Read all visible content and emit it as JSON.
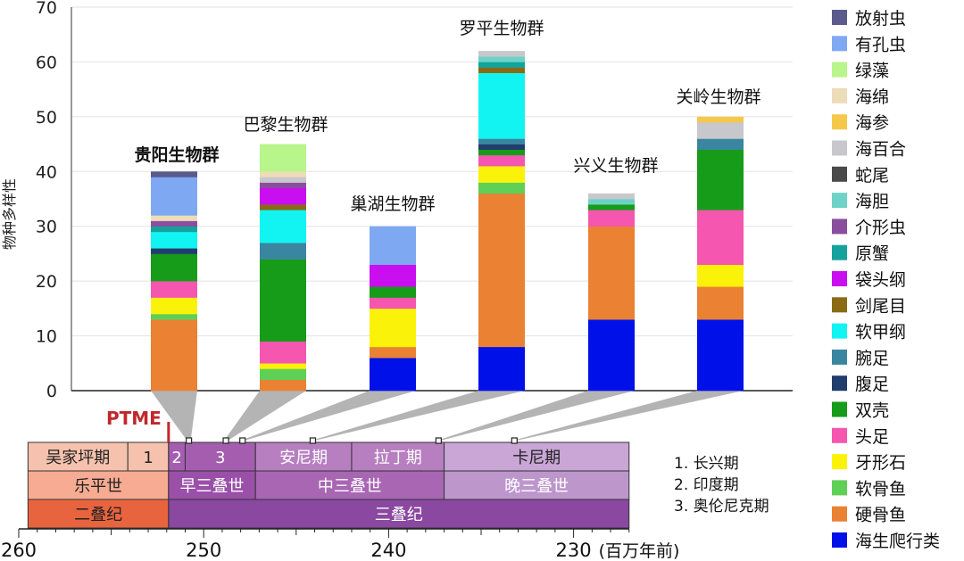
{
  "chart_data": {
    "type": "bar",
    "stacked": true,
    "ylabel": "物种多样性",
    "ylim": [
      0,
      70
    ],
    "yticks": [
      0,
      10,
      20,
      30,
      40,
      50,
      60,
      70
    ],
    "grid": true,
    "legend_placement": "right",
    "categories": [
      "贵阳生物群",
      "巴黎生物群",
      "巢湖生物群",
      "罗平生物群",
      "兴义生物群",
      "关岭生物群"
    ],
    "category_ages_ma": [
      250.8,
      248.8,
      247.9,
      244.1,
      237.3,
      233.2
    ],
    "series": [
      {
        "name": "海生爬行类",
        "color": "#0010e8",
        "values": [
          0,
          0,
          6,
          8,
          13,
          13
        ]
      },
      {
        "name": "硬骨鱼",
        "color": "#ea8133",
        "values": [
          13,
          2,
          2,
          28,
          17,
          6
        ]
      },
      {
        "name": "软骨鱼",
        "color": "#5fcf55",
        "values": [
          1,
          2,
          0,
          2,
          0,
          0
        ]
      },
      {
        "name": "牙形石",
        "color": "#fbf20a",
        "values": [
          3,
          1,
          7,
          3,
          0,
          4
        ]
      },
      {
        "name": "头足",
        "color": "#f556b0",
        "values": [
          3,
          4,
          2,
          2,
          3,
          10
        ]
      },
      {
        "name": "双壳",
        "color": "#169c18",
        "values": [
          5,
          15,
          2,
          1,
          1,
          11
        ]
      },
      {
        "name": "腹足",
        "color": "#213d6e",
        "values": [
          1,
          0,
          0,
          1,
          0,
          0
        ]
      },
      {
        "name": "腕足",
        "color": "#3a85a0",
        "values": [
          0,
          3,
          0,
          1,
          0,
          2
        ]
      },
      {
        "name": "软甲纲",
        "color": "#12f4f2",
        "values": [
          3,
          6,
          0,
          12,
          0,
          0
        ]
      },
      {
        "name": "剑尾目",
        "color": "#8a6a15",
        "values": [
          0,
          1,
          0,
          1,
          0,
          0
        ]
      },
      {
        "name": "袋头纲",
        "color": "#c90ef0",
        "values": [
          0,
          3,
          4,
          0,
          0,
          0
        ]
      },
      {
        "name": "原蟹",
        "color": "#14a39c",
        "values": [
          1,
          0,
          0,
          1,
          0,
          0
        ]
      },
      {
        "name": "介形虫",
        "color": "#8a4e9e",
        "values": [
          1,
          1,
          0,
          0,
          0,
          0
        ]
      },
      {
        "name": "海胆",
        "color": "#6dd3c8",
        "values": [
          0,
          0,
          0,
          1,
          1,
          0
        ]
      },
      {
        "name": "蛇尾",
        "color": "#4a4a4a",
        "values": [
          0,
          0,
          0,
          0,
          0,
          0
        ]
      },
      {
        "name": "海百合",
        "color": "#c8c8cc",
        "values": [
          0,
          1,
          0,
          1,
          1,
          3
        ]
      },
      {
        "name": "海参",
        "color": "#f6c84a",
        "values": [
          0,
          0,
          0,
          0,
          0,
          1
        ]
      },
      {
        "name": "海绵",
        "color": "#ecdcb8",
        "values": [
          1,
          1,
          0,
          0,
          0,
          0
        ]
      },
      {
        "name": "绿藻",
        "color": "#b8f58a",
        "values": [
          0,
          5,
          0,
          0,
          0,
          0
        ]
      },
      {
        "name": "有孔虫",
        "color": "#7fa8f2",
        "values": [
          7,
          0,
          7,
          0,
          0,
          0
        ]
      },
      {
        "name": "放射虫",
        "color": "#5a5a8c",
        "values": [
          1,
          0,
          0,
          0,
          0,
          0
        ]
      }
    ],
    "timescale": {
      "xlim": [
        260,
        225
      ],
      "xticks": [
        260,
        250,
        240,
        230
      ],
      "unit_label": "(百万年前)",
      "event": {
        "label": "PTME",
        "age": 251.9,
        "color": "#c0282c"
      },
      "stages": [
        {
          "label": "吴家坪期",
          "from": 259.5,
          "to": 254.1,
          "color": "#f6c2ae",
          "text": "#222"
        },
        {
          "label": "1",
          "from": 254.1,
          "to": 251.9,
          "color": "#f6c2ae",
          "text": "#222"
        },
        {
          "label": "2",
          "from": 251.9,
          "to": 251.0,
          "color": "#a55db0",
          "text": "#fff"
        },
        {
          "label": "3",
          "from": 251.0,
          "to": 247.2,
          "color": "#a55db0",
          "text": "#fff"
        },
        {
          "label": "安尼期",
          "from": 247.2,
          "to": 242.0,
          "color": "#b77fc0",
          "text": "#fff"
        },
        {
          "label": "拉丁期",
          "from": 242.0,
          "to": 237.0,
          "color": "#b77fc0",
          "text": "#fff"
        },
        {
          "label": "卡尼期",
          "from": 237.0,
          "to": 227.0,
          "color": "#c9a6d6",
          "text": "#222"
        }
      ],
      "epochs": [
        {
          "label": "乐平世",
          "from": 259.5,
          "to": 251.9,
          "color": "#f6ab92",
          "text": "#222"
        },
        {
          "label": "早三叠世",
          "from": 251.9,
          "to": 247.2,
          "color": "#9a50a8",
          "text": "#fff"
        },
        {
          "label": "中三叠世",
          "from": 247.2,
          "to": 237.0,
          "color": "#a866b3",
          "text": "#fff"
        },
        {
          "label": "晚三叠世",
          "from": 237.0,
          "to": 227.0,
          "color": "#bd96cc",
          "text": "#fff"
        }
      ],
      "periods": [
        {
          "label": "二叠纪",
          "from": 259.5,
          "to": 251.9,
          "color": "#e8643e",
          "text": "#222"
        },
        {
          "label": "三叠纪",
          "from": 251.9,
          "to": 227.0,
          "color": "#8a48a0",
          "text": "#fff"
        }
      ],
      "footnotes": [
        "1.  长兴期",
        "2.  印度期",
        "3.  奥伦尼克期"
      ]
    }
  }
}
